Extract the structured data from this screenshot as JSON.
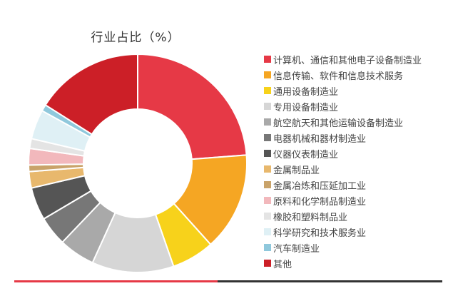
{
  "chart_data": {
    "type": "pie",
    "title": "行业占比（%）",
    "donut": true,
    "legend_position": "right",
    "series": [
      {
        "name": "计算机、通信和其他电子设备制造业",
        "value": 24.5,
        "color": "#e63946"
      },
      {
        "name": "信息传输、软件和信息技术服务",
        "value": 15.0,
        "color": "#f5a623"
      },
      {
        "name": "通用设备制造业",
        "value": 6.5,
        "color": "#f7d21b"
      },
      {
        "name": "专用设备制造业",
        "value": 12.5,
        "color": "#d6d6d6"
      },
      {
        "name": "航空航天和其他运输设备制造业",
        "value": 5.5,
        "color": "#a9a9a9"
      },
      {
        "name": "电器机械和器材制造业",
        "value": 4.5,
        "color": "#777777"
      },
      {
        "name": "仪器仪表制造业",
        "value": 5.0,
        "color": "#555555"
      },
      {
        "name": "金属制品业",
        "value": 2.5,
        "color": "#e8b86d"
      },
      {
        "name": "金属冶炼和压延加工业",
        "value": 1.0,
        "color": "#c9a36a"
      },
      {
        "name": "原料和化学制品制造业",
        "value": 2.5,
        "color": "#f2b8bc"
      },
      {
        "name": "橡胶和塑料制品业",
        "value": 1.5,
        "color": "#e4e4e4"
      },
      {
        "name": "科学研究和技术服务业",
        "value": 4.5,
        "color": "#dff0f5"
      },
      {
        "name": "汽车制造业",
        "value": 1.0,
        "color": "#8fc8dc"
      },
      {
        "name": "其他",
        "value": 16.5,
        "color": "#cc1f27"
      }
    ]
  },
  "footer": {
    "left_color": "#e63946",
    "right_color": "#333333"
  }
}
